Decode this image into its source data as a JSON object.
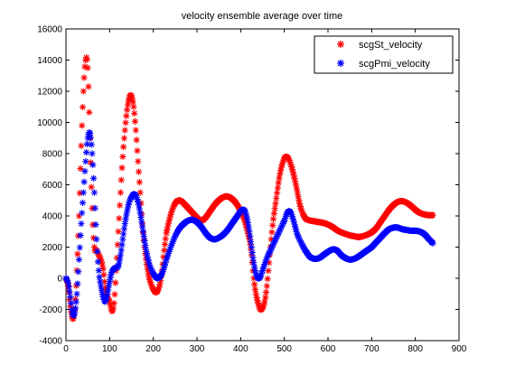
{
  "chart_data": {
    "type": "scatter",
    "title": "velocity ensemble average over time",
    "xlabel": "",
    "ylabel": "",
    "xlim": [
      0,
      900
    ],
    "ylim": [
      -4000,
      16000
    ],
    "xticks": [
      0,
      100,
      200,
      300,
      400,
      500,
      600,
      700,
      800,
      900
    ],
    "yticks": [
      -4000,
      -2000,
      0,
      2000,
      4000,
      6000,
      8000,
      10000,
      12000,
      14000,
      16000
    ],
    "grid": false,
    "legend_position": "top-right",
    "marker": "*",
    "series": [
      {
        "name": "scgSt_velocity",
        "color": "#ff0000",
        "key_points": [
          [
            0,
            0
          ],
          [
            5,
            -500
          ],
          [
            10,
            -1800
          ],
          [
            15,
            -2600
          ],
          [
            20,
            -2000
          ],
          [
            25,
            500
          ],
          [
            30,
            4000
          ],
          [
            35,
            8500
          ],
          [
            40,
            12000
          ],
          [
            45,
            14000
          ],
          [
            50,
            13500
          ],
          [
            55,
            9000
          ],
          [
            60,
            4500
          ],
          [
            65,
            2000
          ],
          [
            70,
            1800
          ],
          [
            75,
            1500
          ],
          [
            80,
            1200
          ],
          [
            85,
            600
          ],
          [
            90,
            -600
          ],
          [
            95,
            -1200
          ],
          [
            100,
            -1500
          ],
          [
            105,
            -2100
          ],
          [
            110,
            -1600
          ],
          [
            115,
            500
          ],
          [
            120,
            3000
          ],
          [
            125,
            5500
          ],
          [
            130,
            7800
          ],
          [
            135,
            9500
          ],
          [
            140,
            10800
          ],
          [
            145,
            11600
          ],
          [
            150,
            11700
          ],
          [
            155,
            11000
          ],
          [
            160,
            9500
          ],
          [
            165,
            7500
          ],
          [
            170,
            5500
          ],
          [
            175,
            3500
          ],
          [
            180,
            2000
          ],
          [
            185,
            900
          ],
          [
            190,
            100
          ],
          [
            195,
            -400
          ],
          [
            200,
            -700
          ],
          [
            205,
            -900
          ],
          [
            210,
            -800
          ],
          [
            215,
            -400
          ],
          [
            220,
            500
          ],
          [
            225,
            1800
          ],
          [
            230,
            2900
          ],
          [
            240,
            4100
          ],
          [
            250,
            4800
          ],
          [
            260,
            5000
          ],
          [
            270,
            4800
          ],
          [
            280,
            4500
          ],
          [
            290,
            4200
          ],
          [
            300,
            3900
          ],
          [
            310,
            3700
          ],
          [
            320,
            3900
          ],
          [
            330,
            4300
          ],
          [
            340,
            4700
          ],
          [
            350,
            5000
          ],
          [
            360,
            5200
          ],
          [
            370,
            5250
          ],
          [
            380,
            5100
          ],
          [
            390,
            4800
          ],
          [
            400,
            4300
          ],
          [
            410,
            3600
          ],
          [
            420,
            2500
          ],
          [
            425,
            1500
          ],
          [
            430,
            0
          ],
          [
            435,
            -1000
          ],
          [
            440,
            -1600
          ],
          [
            445,
            -2000
          ],
          [
            450,
            -1900
          ],
          [
            455,
            -1500
          ],
          [
            460,
            -500
          ],
          [
            465,
            1000
          ],
          [
            470,
            2500
          ],
          [
            475,
            3800
          ],
          [
            480,
            4800
          ],
          [
            485,
            5800
          ],
          [
            490,
            6700
          ],
          [
            495,
            7300
          ],
          [
            500,
            7700
          ],
          [
            505,
            7800
          ],
          [
            510,
            7650
          ],
          [
            515,
            7300
          ],
          [
            520,
            6800
          ],
          [
            525,
            6200
          ],
          [
            530,
            5500
          ],
          [
            535,
            4800
          ],
          [
            540,
            4300
          ],
          [
            545,
            4000
          ],
          [
            550,
            3800
          ],
          [
            560,
            3700
          ],
          [
            570,
            3650
          ],
          [
            580,
            3600
          ],
          [
            590,
            3550
          ],
          [
            600,
            3450
          ],
          [
            610,
            3300
          ],
          [
            620,
            3100
          ],
          [
            630,
            2950
          ],
          [
            640,
            2850
          ],
          [
            650,
            2750
          ],
          [
            660,
            2700
          ],
          [
            670,
            2650
          ],
          [
            680,
            2700
          ],
          [
            690,
            2800
          ],
          [
            700,
            2950
          ],
          [
            710,
            3200
          ],
          [
            720,
            3600
          ],
          [
            730,
            4000
          ],
          [
            740,
            4400
          ],
          [
            750,
            4700
          ],
          [
            760,
            4900
          ],
          [
            770,
            4950
          ],
          [
            780,
            4850
          ],
          [
            790,
            4650
          ],
          [
            800,
            4400
          ],
          [
            810,
            4200
          ],
          [
            820,
            4100
          ],
          [
            830,
            4050
          ],
          [
            840,
            4050
          ]
        ]
      },
      {
        "name": "scgPmi_velocity",
        "color": "#0000ff",
        "key_points": [
          [
            0,
            0
          ],
          [
            5,
            -300
          ],
          [
            10,
            -1200
          ],
          [
            15,
            -2300
          ],
          [
            20,
            -2200
          ],
          [
            25,
            -1000
          ],
          [
            30,
            1200
          ],
          [
            35,
            3500
          ],
          [
            40,
            5500
          ],
          [
            45,
            7500
          ],
          [
            50,
            9000
          ],
          [
            55,
            9300
          ],
          [
            60,
            8000
          ],
          [
            65,
            5500
          ],
          [
            70,
            2500
          ],
          [
            75,
            500
          ],
          [
            80,
            -500
          ],
          [
            85,
            -1200
          ],
          [
            90,
            -1500
          ],
          [
            95,
            -1000
          ],
          [
            100,
            -200
          ],
          [
            105,
            400
          ],
          [
            110,
            600
          ],
          [
            115,
            700
          ],
          [
            120,
            800
          ],
          [
            125,
            1500
          ],
          [
            130,
            2500
          ],
          [
            135,
            3500
          ],
          [
            140,
            4300
          ],
          [
            145,
            4900
          ],
          [
            150,
            5200
          ],
          [
            155,
            5400
          ],
          [
            160,
            5300
          ],
          [
            165,
            4900
          ],
          [
            170,
            4200
          ],
          [
            175,
            3300
          ],
          [
            180,
            2400
          ],
          [
            185,
            1600
          ],
          [
            190,
            1000
          ],
          [
            195,
            600
          ],
          [
            200,
            300
          ],
          [
            205,
            100
          ],
          [
            210,
            0
          ],
          [
            215,
            100
          ],
          [
            220,
            300
          ],
          [
            225,
            700
          ],
          [
            230,
            1200
          ],
          [
            240,
            2000
          ],
          [
            250,
            2700
          ],
          [
            260,
            3200
          ],
          [
            270,
            3500
          ],
          [
            280,
            3700
          ],
          [
            290,
            3750
          ],
          [
            300,
            3600
          ],
          [
            310,
            3300
          ],
          [
            320,
            2900
          ],
          [
            330,
            2600
          ],
          [
            340,
            2500
          ],
          [
            350,
            2600
          ],
          [
            360,
            2800
          ],
          [
            370,
            3100
          ],
          [
            380,
            3500
          ],
          [
            390,
            3900
          ],
          [
            400,
            4300
          ],
          [
            405,
            4400
          ],
          [
            410,
            4300
          ],
          [
            415,
            3800
          ],
          [
            420,
            3000
          ],
          [
            425,
            2000
          ],
          [
            430,
            1000
          ],
          [
            435,
            300
          ],
          [
            440,
            0
          ],
          [
            445,
            100
          ],
          [
            450,
            500
          ],
          [
            460,
            1300
          ],
          [
            470,
            1900
          ],
          [
            480,
            2500
          ],
          [
            490,
            3100
          ],
          [
            500,
            3700
          ],
          [
            505,
            4100
          ],
          [
            510,
            4300
          ],
          [
            515,
            4200
          ],
          [
            520,
            3800
          ],
          [
            525,
            3300
          ],
          [
            530,
            2800
          ],
          [
            540,
            2200
          ],
          [
            550,
            1700
          ],
          [
            560,
            1350
          ],
          [
            570,
            1250
          ],
          [
            580,
            1300
          ],
          [
            590,
            1500
          ],
          [
            600,
            1700
          ],
          [
            610,
            1850
          ],
          [
            620,
            1800
          ],
          [
            630,
            1500
          ],
          [
            640,
            1300
          ],
          [
            650,
            1200
          ],
          [
            660,
            1250
          ],
          [
            670,
            1400
          ],
          [
            680,
            1600
          ],
          [
            690,
            1800
          ],
          [
            700,
            2000
          ],
          [
            710,
            2300
          ],
          [
            720,
            2600
          ],
          [
            730,
            2900
          ],
          [
            740,
            3150
          ],
          [
            750,
            3250
          ],
          [
            760,
            3250
          ],
          [
            770,
            3150
          ],
          [
            780,
            3100
          ],
          [
            790,
            3050
          ],
          [
            800,
            3050
          ],
          [
            810,
            3000
          ],
          [
            820,
            2850
          ],
          [
            830,
            2550
          ],
          [
            840,
            2250
          ]
        ]
      }
    ]
  }
}
